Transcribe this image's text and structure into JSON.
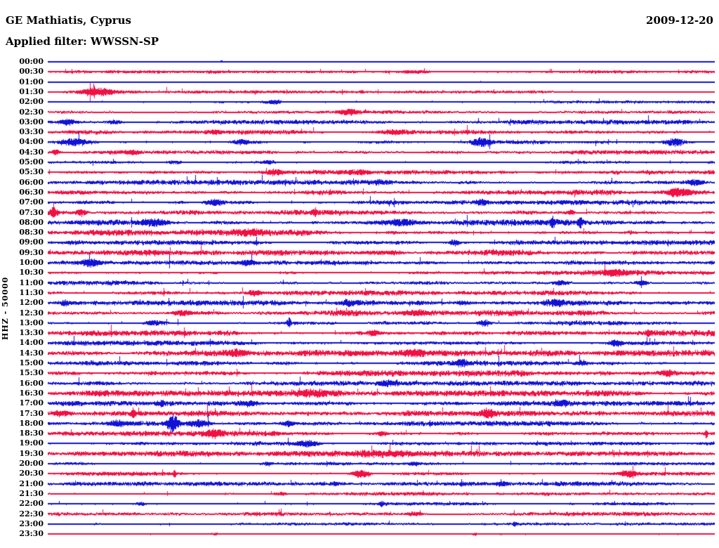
{
  "header": {
    "station_title": "GE Mathiatis, Cyprus",
    "filter_label": "Applied filter: WWSSN-SP",
    "date": "2009-12-20"
  },
  "chart_data": {
    "type": "line",
    "subtype": "helicorder-seismogram",
    "title": "GE Mathiatis, Cyprus",
    "subtitle": "Applied filter: WWSSN-SP",
    "date": "2009-12-20",
    "ylabel": "HHZ - 50000",
    "xlabel": "",
    "minutes_per_line": 30,
    "line_count": 48,
    "grid": false,
    "legend": "none",
    "colors": {
      "blue": "#1212d7",
      "red": "#f01044"
    },
    "event_format": "[fraction_of_line, amplitude_px, halfwidth_px]",
    "rows": [
      {
        "time": "00:00",
        "color": "blue",
        "noise": 0.3,
        "events": [
          [
            0.26,
            1.6,
            3
          ]
        ]
      },
      {
        "time": "00:30",
        "color": "red",
        "noise": 1.1,
        "events": [
          [
            0.55,
            1.8,
            25
          ]
        ]
      },
      {
        "time": "01:00",
        "color": "blue",
        "noise": 0.3,
        "events": [
          [
            0.65,
            1.4,
            3
          ]
        ]
      },
      {
        "time": "01:30",
        "color": "red",
        "noise": 0.9,
        "events": [
          [
            0.076,
            5,
            26
          ],
          [
            0.31,
            2,
            3
          ],
          [
            0.47,
            1.8,
            3
          ]
        ]
      },
      {
        "time": "02:00",
        "color": "blue",
        "noise": 0.9,
        "events": [
          [
            0.34,
            2.4,
            12
          ]
        ]
      },
      {
        "time": "02:30",
        "color": "red",
        "noise": 1.1,
        "events": [
          [
            0.45,
            3,
            14
          ]
        ]
      },
      {
        "time": "03:00",
        "color": "blue",
        "noise": 1.4,
        "events": [
          [
            0.03,
            3,
            12
          ],
          [
            0.1,
            2.8,
            10
          ]
        ]
      },
      {
        "time": "03:30",
        "color": "red",
        "noise": 1.4,
        "events": [
          [
            0.25,
            2.4,
            10
          ],
          [
            0.52,
            2,
            18
          ]
        ]
      },
      {
        "time": "04:00",
        "color": "blue",
        "noise": 1.4,
        "events": [
          [
            0.04,
            4.5,
            20
          ],
          [
            0.29,
            3.2,
            12
          ],
          [
            0.65,
            5.5,
            13
          ],
          [
            0.94,
            5,
            12
          ]
        ]
      },
      {
        "time": "04:30",
        "color": "red",
        "noise": 1.4,
        "events": [
          [
            0.012,
            4,
            5
          ],
          [
            0.13,
            2.4,
            10
          ]
        ]
      },
      {
        "time": "05:00",
        "color": "blue",
        "noise": 1.2,
        "events": [
          [
            0.19,
            2.8,
            10
          ],
          [
            0.33,
            2.4,
            10
          ]
        ]
      },
      {
        "time": "05:30",
        "color": "red",
        "noise": 1.5,
        "events": [
          [
            0.34,
            3,
            12
          ],
          [
            0.47,
            2.4,
            10
          ]
        ]
      },
      {
        "time": "06:00",
        "color": "blue",
        "noise": 1.6,
        "events": [
          [
            0.5,
            2.5,
            15
          ],
          [
            0.97,
            3.5,
            14
          ]
        ]
      },
      {
        "time": "06:30",
        "color": "red",
        "noise": 1.7,
        "events": [
          [
            0.945,
            5,
            16
          ]
        ]
      },
      {
        "time": "07:00",
        "color": "blue",
        "noise": 1.6,
        "events": [
          [
            0.25,
            4,
            15
          ],
          [
            0.65,
            3.5,
            8
          ]
        ]
      },
      {
        "time": "07:30",
        "color": "red",
        "noise": 1.7,
        "events": [
          [
            0.008,
            6.5,
            6
          ],
          [
            0.05,
            4.5,
            8
          ],
          [
            0.4,
            4,
            3
          ],
          [
            0.785,
            3.5,
            4
          ]
        ]
      },
      {
        "time": "08:00",
        "color": "blue",
        "noise": 1.9,
        "events": [
          [
            0.16,
            4,
            18
          ],
          [
            0.53,
            3,
            25
          ],
          [
            0.757,
            6,
            3
          ],
          [
            0.798,
            6,
            3
          ]
        ]
      },
      {
        "time": "08:30",
        "color": "red",
        "noise": 1.9,
        "events": [
          [
            0.3,
            2.5,
            20
          ]
        ]
      },
      {
        "time": "09:00",
        "color": "blue",
        "noise": 1.5,
        "events": [
          [
            0.61,
            3.5,
            6
          ]
        ]
      },
      {
        "time": "09:30",
        "color": "red",
        "noise": 1.9,
        "events": [
          [
            0.5,
            2.2,
            30
          ]
        ]
      },
      {
        "time": "10:00",
        "color": "blue",
        "noise": 1.4,
        "events": [
          [
            0.065,
            4,
            13
          ],
          [
            0.3,
            3,
            10
          ]
        ]
      },
      {
        "time": "10:30",
        "color": "red",
        "noise": 1.5,
        "events": [
          [
            0.85,
            3,
            22
          ]
        ]
      },
      {
        "time": "11:00",
        "color": "blue",
        "noise": 1.5,
        "events": [
          [
            0.77,
            3,
            12
          ],
          [
            0.89,
            3,
            8
          ]
        ]
      },
      {
        "time": "11:30",
        "color": "red",
        "noise": 1.5,
        "events": [
          [
            0.31,
            3,
            10
          ]
        ]
      },
      {
        "time": "12:00",
        "color": "blue",
        "noise": 1.6,
        "events": [
          [
            0.025,
            3,
            6
          ],
          [
            0.45,
            3,
            12
          ],
          [
            0.62,
            2.5,
            8
          ],
          [
            0.76,
            3.5,
            12
          ]
        ]
      },
      {
        "time": "12:30",
        "color": "red",
        "noise": 1.9,
        "events": [
          [
            0.2,
            3,
            15
          ],
          [
            0.55,
            2.5,
            20
          ]
        ]
      },
      {
        "time": "13:00",
        "color": "blue",
        "noise": 1.5,
        "events": [
          [
            0.16,
            3.5,
            15
          ],
          [
            0.361,
            6,
            3
          ],
          [
            0.655,
            4,
            10
          ]
        ]
      },
      {
        "time": "13:30",
        "color": "red",
        "noise": 1.9,
        "events": [
          [
            0.487,
            3,
            8
          ],
          [
            0.9,
            3.5,
            3
          ]
        ]
      },
      {
        "time": "14:00",
        "color": "blue",
        "noise": 1.5,
        "events": [
          [
            0.85,
            3.5,
            10
          ]
        ]
      },
      {
        "time": "14:30",
        "color": "red",
        "noise": 1.9,
        "events": [
          [
            0.28,
            3.5,
            15
          ],
          [
            0.55,
            2.5,
            15
          ]
        ]
      },
      {
        "time": "15:00",
        "color": "blue",
        "noise": 1.5,
        "events": [
          [
            0.62,
            3.5,
            8
          ],
          [
            0.8,
            3,
            8
          ]
        ]
      },
      {
        "time": "15:30",
        "color": "red",
        "noise": 1.9,
        "events": [
          [
            0.93,
            3.5,
            10
          ]
        ]
      },
      {
        "time": "16:00",
        "color": "blue",
        "noise": 1.6,
        "events": [
          [
            0.51,
            3,
            15
          ]
        ]
      },
      {
        "time": "16:30",
        "color": "red",
        "noise": 1.9,
        "events": [
          [
            0.4,
            2.5,
            22
          ]
        ]
      },
      {
        "time": "17:00",
        "color": "blue",
        "noise": 1.5,
        "events": [
          [
            0.17,
            2.5,
            6
          ],
          [
            0.3,
            3,
            14
          ],
          [
            0.77,
            3,
            10
          ]
        ]
      },
      {
        "time": "17:30",
        "color": "red",
        "noise": 1.7,
        "events": [
          [
            0.02,
            3,
            15
          ],
          [
            0.128,
            5,
            3
          ],
          [
            0.66,
            4.5,
            10
          ]
        ]
      },
      {
        "time": "18:00",
        "color": "blue",
        "noise": 1.6,
        "events": [
          [
            0.105,
            3,
            14
          ],
          [
            0.187,
            11,
            8
          ],
          [
            0.225,
            4.5,
            18
          ],
          [
            0.36,
            3,
            8
          ]
        ]
      },
      {
        "time": "18:30",
        "color": "red",
        "noise": 1.6,
        "events": [
          [
            0.25,
            4,
            12
          ],
          [
            0.5,
            3,
            10
          ],
          [
            0.987,
            5.5,
            2
          ]
        ]
      },
      {
        "time": "19:00",
        "color": "blue",
        "noise": 1.4,
        "events": [
          [
            0.39,
            4.5,
            16
          ]
        ]
      },
      {
        "time": "19:30",
        "color": "red",
        "noise": 1.8,
        "events": [
          [
            0.5,
            2,
            40
          ]
        ]
      },
      {
        "time": "20:00",
        "color": "blue",
        "noise": 1.1,
        "events": [
          [
            0.33,
            2.4,
            8
          ],
          [
            0.55,
            2,
            8
          ]
        ]
      },
      {
        "time": "20:30",
        "color": "red",
        "noise": 1.3,
        "events": [
          [
            0.19,
            4.5,
            2
          ],
          [
            0.47,
            5.5,
            13
          ],
          [
            0.87,
            3.5,
            10
          ]
        ]
      },
      {
        "time": "21:00",
        "color": "blue",
        "noise": 1.4,
        "events": [
          [
            0.68,
            2.4,
            10
          ]
        ]
      },
      {
        "time": "21:30",
        "color": "red",
        "noise": 1.2,
        "events": [
          [
            0.35,
            2,
            10
          ]
        ]
      },
      {
        "time": "22:00",
        "color": "blue",
        "noise": 1.0,
        "events": [
          [
            0.14,
            2,
            6
          ],
          [
            0.5,
            3.5,
            3
          ]
        ]
      },
      {
        "time": "22:30",
        "color": "red",
        "noise": 1.4,
        "events": [
          [
            0.55,
            2.4,
            15
          ]
        ]
      },
      {
        "time": "23:00",
        "color": "blue",
        "noise": 1.0,
        "events": [
          [
            0.7,
            2.8,
            3
          ]
        ]
      },
      {
        "time": "23:30",
        "color": "red",
        "noise": 0.55,
        "events": [
          [
            0.25,
            1.5,
            4
          ],
          [
            0.64,
            1.5,
            4
          ]
        ]
      }
    ]
  }
}
